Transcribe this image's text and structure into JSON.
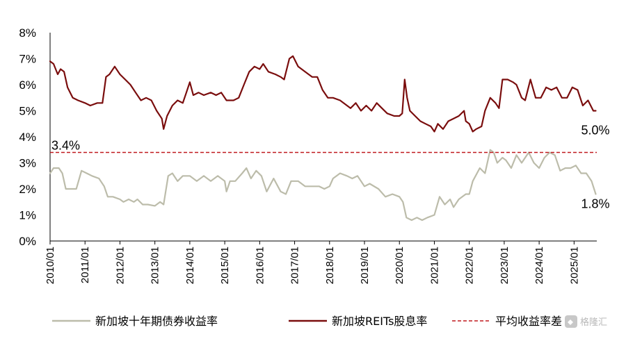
{
  "chart_data": {
    "type": "line",
    "title": "",
    "xlabel": "",
    "ylabel": "",
    "ylim": [
      0,
      8
    ],
    "y_ticks": [
      "0%",
      "1%",
      "2%",
      "3%",
      "4%",
      "5%",
      "6%",
      "7%",
      "8%"
    ],
    "x_ticks": [
      "2010/01",
      "2011/01",
      "2012/01",
      "2013/01",
      "2014/01",
      "2015/01",
      "2016/01",
      "2017/01",
      "2018/01",
      "2019/01",
      "2020/01",
      "2021/01",
      "2022/01",
      "2023/01",
      "2024/01",
      "2025/01"
    ],
    "xlim": [
      2010.0,
      2025.65
    ],
    "grid": false,
    "legend_position": "bottom",
    "series": [
      {
        "name": "新加坡十年期债券收益率",
        "color": "#bcbcaa",
        "points": [
          [
            2010.0,
            2.6
          ],
          [
            2010.1,
            2.8
          ],
          [
            2010.25,
            2.8
          ],
          [
            2010.35,
            2.6
          ],
          [
            2010.45,
            2.0
          ],
          [
            2010.6,
            2.0
          ],
          [
            2010.75,
            2.0
          ],
          [
            2010.9,
            2.7
          ],
          [
            2011.05,
            2.6
          ],
          [
            2011.2,
            2.5
          ],
          [
            2011.4,
            2.4
          ],
          [
            2011.55,
            2.1
          ],
          [
            2011.65,
            1.7
          ],
          [
            2011.8,
            1.7
          ],
          [
            2012.0,
            1.6
          ],
          [
            2012.1,
            1.5
          ],
          [
            2012.25,
            1.6
          ],
          [
            2012.4,
            1.5
          ],
          [
            2012.5,
            1.6
          ],
          [
            2012.65,
            1.4
          ],
          [
            2012.8,
            1.4
          ],
          [
            2013.0,
            1.35
          ],
          [
            2013.15,
            1.5
          ],
          [
            2013.25,
            1.4
          ],
          [
            2013.38,
            2.5
          ],
          [
            2013.5,
            2.6
          ],
          [
            2013.65,
            2.3
          ],
          [
            2013.8,
            2.5
          ],
          [
            2014.0,
            2.5
          ],
          [
            2014.2,
            2.3
          ],
          [
            2014.4,
            2.5
          ],
          [
            2014.6,
            2.3
          ],
          [
            2014.8,
            2.5
          ],
          [
            2015.0,
            2.3
          ],
          [
            2015.05,
            1.9
          ],
          [
            2015.15,
            2.3
          ],
          [
            2015.3,
            2.3
          ],
          [
            2015.5,
            2.6
          ],
          [
            2015.62,
            2.8
          ],
          [
            2015.75,
            2.4
          ],
          [
            2015.9,
            2.7
          ],
          [
            2016.05,
            2.5
          ],
          [
            2016.2,
            1.9
          ],
          [
            2016.4,
            2.4
          ],
          [
            2016.6,
            1.9
          ],
          [
            2016.75,
            1.8
          ],
          [
            2016.9,
            2.3
          ],
          [
            2017.1,
            2.3
          ],
          [
            2017.3,
            2.1
          ],
          [
            2017.5,
            2.1
          ],
          [
            2017.7,
            2.1
          ],
          [
            2017.85,
            2.0
          ],
          [
            2018.0,
            2.1
          ],
          [
            2018.1,
            2.4
          ],
          [
            2018.3,
            2.6
          ],
          [
            2018.5,
            2.5
          ],
          [
            2018.65,
            2.4
          ],
          [
            2018.8,
            2.5
          ],
          [
            2019.0,
            2.1
          ],
          [
            2019.15,
            2.2
          ],
          [
            2019.4,
            2.0
          ],
          [
            2019.6,
            1.7
          ],
          [
            2019.8,
            1.8
          ],
          [
            2020.0,
            1.7
          ],
          [
            2020.1,
            1.5
          ],
          [
            2020.2,
            0.9
          ],
          [
            2020.35,
            0.8
          ],
          [
            2020.5,
            0.9
          ],
          [
            2020.65,
            0.8
          ],
          [
            2020.8,
            0.9
          ],
          [
            2021.0,
            1.0
          ],
          [
            2021.15,
            1.7
          ],
          [
            2021.3,
            1.4
          ],
          [
            2021.45,
            1.6
          ],
          [
            2021.55,
            1.3
          ],
          [
            2021.7,
            1.6
          ],
          [
            2021.9,
            1.8
          ],
          [
            2022.0,
            1.8
          ],
          [
            2022.1,
            2.3
          ],
          [
            2022.3,
            2.8
          ],
          [
            2022.45,
            2.6
          ],
          [
            2022.6,
            3.5
          ],
          [
            2022.7,
            3.4
          ],
          [
            2022.8,
            3.0
          ],
          [
            2022.95,
            3.2
          ],
          [
            2023.05,
            3.1
          ],
          [
            2023.2,
            2.8
          ],
          [
            2023.35,
            3.3
          ],
          [
            2023.5,
            3.0
          ],
          [
            2023.7,
            3.4
          ],
          [
            2023.85,
            3.0
          ],
          [
            2024.0,
            2.8
          ],
          [
            2024.15,
            3.2
          ],
          [
            2024.3,
            3.4
          ],
          [
            2024.45,
            3.3
          ],
          [
            2024.6,
            2.7
          ],
          [
            2024.75,
            2.8
          ],
          [
            2024.9,
            2.8
          ],
          [
            2025.05,
            2.9
          ],
          [
            2025.2,
            2.6
          ],
          [
            2025.35,
            2.6
          ],
          [
            2025.5,
            2.3
          ],
          [
            2025.62,
            1.8
          ]
        ]
      },
      {
        "name": "新加坡REITs股息率",
        "color": "#7a0d0d",
        "points": [
          [
            2010.0,
            6.9
          ],
          [
            2010.1,
            6.8
          ],
          [
            2010.22,
            6.4
          ],
          [
            2010.3,
            6.6
          ],
          [
            2010.4,
            6.5
          ],
          [
            2010.5,
            5.9
          ],
          [
            2010.65,
            5.5
          ],
          [
            2010.8,
            5.4
          ],
          [
            2011.0,
            5.3
          ],
          [
            2011.15,
            5.2
          ],
          [
            2011.35,
            5.3
          ],
          [
            2011.5,
            5.3
          ],
          [
            2011.6,
            6.3
          ],
          [
            2011.7,
            6.4
          ],
          [
            2011.85,
            6.7
          ],
          [
            2012.0,
            6.4
          ],
          [
            2012.15,
            6.2
          ],
          [
            2012.3,
            6.0
          ],
          [
            2012.45,
            5.7
          ],
          [
            2012.6,
            5.4
          ],
          [
            2012.75,
            5.5
          ],
          [
            2012.9,
            5.4
          ],
          [
            2013.05,
            5.0
          ],
          [
            2013.2,
            4.7
          ],
          [
            2013.25,
            4.3
          ],
          [
            2013.35,
            4.8
          ],
          [
            2013.5,
            5.2
          ],
          [
            2013.65,
            5.4
          ],
          [
            2013.8,
            5.3
          ],
          [
            2013.9,
            5.7
          ],
          [
            2014.0,
            6.1
          ],
          [
            2014.1,
            5.6
          ],
          [
            2014.25,
            5.7
          ],
          [
            2014.4,
            5.6
          ],
          [
            2014.6,
            5.7
          ],
          [
            2014.75,
            5.6
          ],
          [
            2014.9,
            5.7
          ],
          [
            2015.05,
            5.4
          ],
          [
            2015.25,
            5.4
          ],
          [
            2015.4,
            5.5
          ],
          [
            2015.55,
            6.0
          ],
          [
            2015.7,
            6.5
          ],
          [
            2015.85,
            6.7
          ],
          [
            2016.0,
            6.6
          ],
          [
            2016.1,
            6.8
          ],
          [
            2016.25,
            6.5
          ],
          [
            2016.45,
            6.4
          ],
          [
            2016.6,
            6.3
          ],
          [
            2016.7,
            6.2
          ],
          [
            2016.85,
            7.0
          ],
          [
            2016.95,
            7.1
          ],
          [
            2017.1,
            6.7
          ],
          [
            2017.3,
            6.5
          ],
          [
            2017.5,
            6.3
          ],
          [
            2017.65,
            6.3
          ],
          [
            2017.8,
            5.8
          ],
          [
            2017.95,
            5.5
          ],
          [
            2018.1,
            5.5
          ],
          [
            2018.3,
            5.4
          ],
          [
            2018.5,
            5.2
          ],
          [
            2018.6,
            5.1
          ],
          [
            2018.75,
            5.3
          ],
          [
            2018.9,
            5.0
          ],
          [
            2019.05,
            5.2
          ],
          [
            2019.2,
            5.0
          ],
          [
            2019.35,
            5.3
          ],
          [
            2019.5,
            5.1
          ],
          [
            2019.65,
            4.9
          ],
          [
            2019.85,
            4.8
          ],
          [
            2020.0,
            4.8
          ],
          [
            2020.08,
            4.9
          ],
          [
            2020.15,
            6.2
          ],
          [
            2020.22,
            5.5
          ],
          [
            2020.3,
            5.0
          ],
          [
            2020.45,
            4.8
          ],
          [
            2020.6,
            4.6
          ],
          [
            2020.75,
            4.5
          ],
          [
            2020.9,
            4.4
          ],
          [
            2021.0,
            4.2
          ],
          [
            2021.1,
            4.5
          ],
          [
            2021.25,
            4.3
          ],
          [
            2021.4,
            4.6
          ],
          [
            2021.55,
            4.7
          ],
          [
            2021.7,
            4.8
          ],
          [
            2021.85,
            5.0
          ],
          [
            2021.9,
            4.6
          ],
          [
            2022.0,
            4.5
          ],
          [
            2022.1,
            4.2
          ],
          [
            2022.2,
            4.3
          ],
          [
            2022.35,
            4.4
          ],
          [
            2022.45,
            5.0
          ],
          [
            2022.6,
            5.5
          ],
          [
            2022.75,
            5.3
          ],
          [
            2022.85,
            5.1
          ],
          [
            2022.95,
            6.2
          ],
          [
            2023.1,
            6.2
          ],
          [
            2023.25,
            6.1
          ],
          [
            2023.35,
            6.0
          ],
          [
            2023.5,
            5.5
          ],
          [
            2023.6,
            5.4
          ],
          [
            2023.75,
            6.2
          ],
          [
            2023.9,
            5.5
          ],
          [
            2024.05,
            5.5
          ],
          [
            2024.2,
            5.9
          ],
          [
            2024.35,
            5.8
          ],
          [
            2024.5,
            5.9
          ],
          [
            2024.65,
            5.5
          ],
          [
            2024.8,
            5.5
          ],
          [
            2024.95,
            5.9
          ],
          [
            2025.1,
            5.8
          ],
          [
            2025.25,
            5.2
          ],
          [
            2025.4,
            5.4
          ],
          [
            2025.55,
            5.0
          ],
          [
            2025.62,
            5.0
          ]
        ]
      },
      {
        "name": "平均收益率差",
        "color": "#c0191d",
        "style": "dashed",
        "points": [
          [
            2010.0,
            3.4
          ],
          [
            2025.65,
            3.4
          ]
        ]
      }
    ],
    "annotations": [
      {
        "text": "3.4%",
        "x": 2010.0,
        "y": 3.4
      },
      {
        "text": "5.0%",
        "x": 2025.62,
        "y": 5.0
      },
      {
        "text": "1.8%",
        "x": 2025.62,
        "y": 1.8
      }
    ]
  },
  "watermark": {
    "text": "格隆汇",
    "icon": "gelonghui-logo-icon"
  }
}
